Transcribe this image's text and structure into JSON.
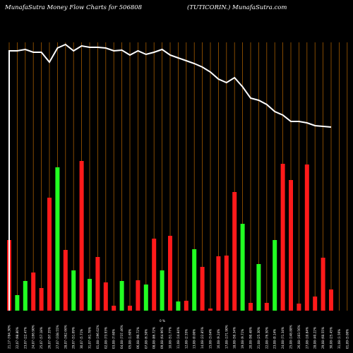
{
  "header": {
    "left": "MunafaSutra  Money Flow  Charts for 506808",
    "right": "(TUTICORIN.) MunafaSutra.com"
  },
  "chart_data": {
    "type": "bar",
    "title": "MunafaSutra  Money Flow  Charts for 506808",
    "subtitle": "(TUTICORIN.) MunafaSutra.com",
    "xlabel": "",
    "ylabel": "",
    "grid": true,
    "categories": [
      "21,17 (784.30%",
      "22,07 (98.80%",
      "23,07 (22.47%",
      "24,07 (166.90%",
      "25,07 (57.18%",
      "26,07 (97.35%",
      "27,07 (338.55%",
      "28,07 (362.66%",
      "29,07 (51.09%",
      "30,07 (5.71%",
      "31,07 (61.78%",
      "01,08 (196.02%",
      "02,08 (73.93%",
      "03,08 (7.60%",
      "04,08 (737.46%",
      "05,08 (1.60%",
      "06,08 (90.72%",
      "07,08 (6.50%",
      "08,08 (86.72%",
      "09,08 (64.96%",
      "10,08 (51.77%",
      "11,08 (14.84%",
      "12,08 (2.55%",
      "13,08 (0.00%",
      "14,08 (22.85%",
      "15,08 (3.64%",
      "16,08 (9.24%",
      "17,08 (171.90%",
      "18,08 (50.34%",
      "19,08 (9.71%",
      "20,08 (90.48%",
      "21,08 (25.30%",
      "22,08 (76.50%",
      "23,08 (0.14%",
      "24,08 (71.34%",
      "25,08 (148.88%",
      "26,08 (103.56%",
      "27,08 (10.84%",
      "28,08 (40.22%",
      "29,08 (60.55%",
      "30,08 (25.45%",
      "31,08 (1.56%",
      "01,09 (5.00%"
    ],
    "bar_colors": [
      "red",
      "lime",
      "lime",
      "red",
      "red",
      "red",
      "lime",
      "red",
      "lime",
      "red",
      "lime",
      "red",
      "red",
      "red",
      "lime",
      "red",
      "red",
      "lime",
      "red",
      "lime",
      "red",
      "lime",
      "red",
      "lime",
      "red",
      "red",
      "red",
      "red",
      "red",
      "lime",
      "red",
      "lime",
      "red",
      "lime",
      "red",
      "red",
      "red",
      "red",
      "red",
      "red",
      "red",
      "lime",
      "lime"
    ],
    "money_flow_values": [
      100,
      22,
      42,
      54,
      32,
      160,
      203,
      86,
      57,
      212,
      45,
      76,
      40,
      7,
      42,
      7,
      43,
      37,
      102,
      57,
      106,
      13,
      14,
      87,
      62,
      3,
      77,
      78,
      168,
      123,
      11,
      66,
      11,
      100,
      208,
      185,
      10,
      207,
      20,
      75,
      30,
      0,
      0
    ],
    "price_line": [
      368,
      368,
      370,
      366,
      366,
      352,
      372,
      377,
      368,
      375,
      373,
      373,
      372,
      368,
      369,
      362,
      368,
      363,
      366,
      370,
      362,
      358,
      354,
      350,
      345,
      338,
      328,
      323,
      330,
      317,
      301,
      298,
      292,
      282,
      277,
      268,
      268,
      266,
      262,
      261,
      260,
      0,
      0
    ],
    "price_line_note": "",
    "center_label": "0 %"
  }
}
